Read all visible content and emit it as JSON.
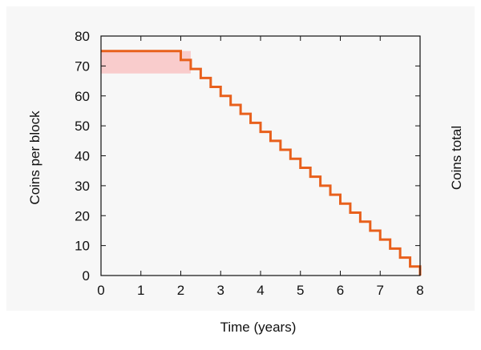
{
  "chart_data": {
    "type": "line",
    "title": "",
    "xlabel": "Time (years)",
    "ylabel": "Coins per block",
    "y2label": "Coins total",
    "xlim": [
      0,
      8
    ],
    "ylim": [
      0,
      80
    ],
    "x_ticks": [
      "0",
      "1",
      "2",
      "3",
      "4",
      "5",
      "6",
      "7",
      "8"
    ],
    "y_ticks": [
      "0",
      "10",
      "20",
      "30",
      "40",
      "50",
      "60",
      "70",
      "80"
    ],
    "grid": false,
    "legend": "none",
    "colors": {
      "line": "#e8601c",
      "fill": "#f9cccc",
      "axes": "#111111",
      "plot_background": "#f7f7f7"
    },
    "series": [
      {
        "style": "step",
        "x": [
          0,
          2,
          2.25,
          2.5,
          2.75,
          3,
          3.25,
          3.5,
          3.75,
          4,
          4.25,
          4.5,
          4.75,
          5,
          5.25,
          5.5,
          5.75,
          6,
          6.25,
          6.5,
          6.75,
          7,
          7.25,
          7.5,
          7.75,
          8
        ],
        "y": [
          75,
          72,
          69,
          66,
          63,
          60,
          57,
          54,
          51,
          48,
          45,
          42,
          39,
          36,
          33,
          30,
          27,
          24,
          21,
          18,
          15,
          12,
          9,
          6,
          3,
          0
        ]
      }
    ],
    "shaded_band": {
      "x": [
        0,
        2.25
      ],
      "y_low": 67.5,
      "y_high": 75
    }
  }
}
